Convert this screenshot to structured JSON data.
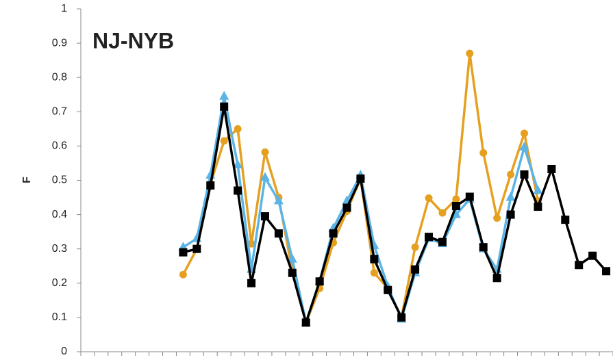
{
  "chart_data": {
    "type": "line",
    "title": "NJ-NYB",
    "y_label": "F",
    "categories": [
      null,
      null,
      null,
      null,
      null,
      null,
      null,
      null,
      null,
      null,
      null,
      null,
      null,
      null,
      null,
      null,
      null,
      null,
      null,
      null,
      null,
      null,
      null,
      null,
      null,
      null,
      null,
      null,
      null,
      null,
      null,
      null,
      null,
      null,
      null,
      null,
      null,
      null,
      null
    ],
    "series": [
      {
        "color": "#e6a020",
        "marker": "circle",
        "values": [
          null,
          null,
          null,
          null,
          null,
          null,
          null,
          0.225,
          0.3,
          0.49,
          0.615,
          0.65,
          0.315,
          0.582,
          0.45,
          0.235,
          0.085,
          0.185,
          0.318,
          0.41,
          0.505,
          0.23,
          0.185,
          0.1,
          0.305,
          0.448,
          0.405,
          0.445,
          0.87,
          0.58,
          0.39,
          0.517,
          0.637,
          0.44,
          null,
          null,
          null,
          null,
          null
        ]
      },
      {
        "color": "#5ab4e6",
        "marker": "triangle",
        "values": [
          null,
          null,
          null,
          null,
          null,
          null,
          null,
          0.305,
          0.33,
          0.515,
          0.745,
          0.545,
          0.24,
          0.508,
          0.44,
          0.27,
          0.085,
          0.205,
          0.36,
          0.44,
          0.515,
          0.31,
          0.19,
          0.095,
          0.23,
          0.33,
          0.315,
          0.4,
          0.445,
          0.3,
          0.24,
          0.45,
          0.597,
          0.47,
          null,
          null,
          null,
          null,
          null
        ]
      },
      {
        "color": "#000000",
        "marker": "square",
        "values": [
          null,
          null,
          null,
          null,
          null,
          null,
          null,
          0.29,
          0.3,
          0.485,
          0.715,
          0.47,
          0.2,
          0.395,
          0.345,
          0.23,
          0.085,
          0.205,
          0.345,
          0.42,
          0.505,
          0.27,
          0.18,
          0.1,
          0.24,
          0.335,
          0.32,
          0.425,
          0.452,
          0.305,
          0.215,
          0.4,
          0.517,
          0.423,
          0.533,
          0.385,
          0.253,
          0.28,
          0.235
        ]
      }
    ],
    "ylim": [
      0,
      1
    ],
    "yticks": [
      0,
      0.1,
      0.2,
      0.3,
      0.4,
      0.5,
      0.6,
      0.7,
      0.8,
      0.9,
      1
    ],
    "grid": false
  }
}
